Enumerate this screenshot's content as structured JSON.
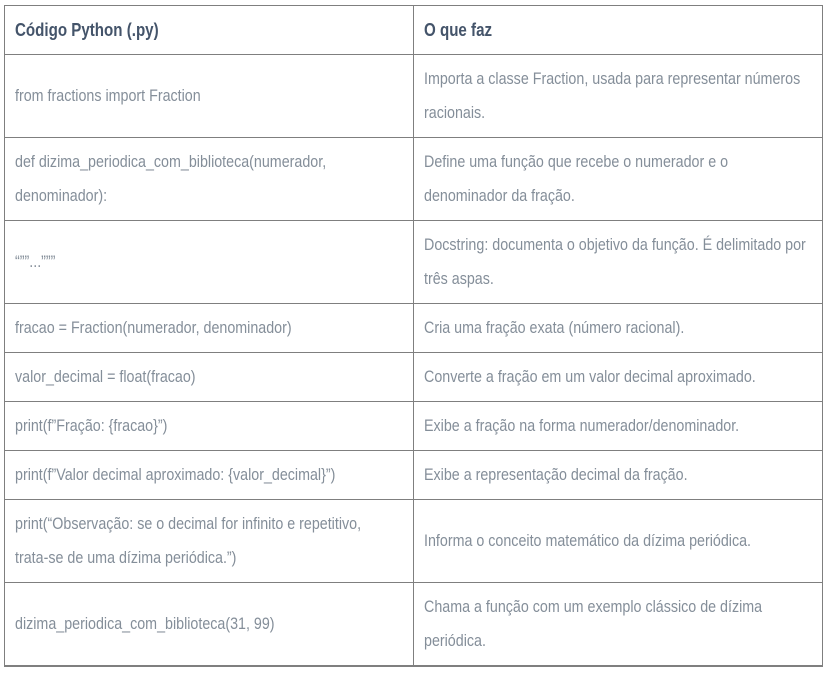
{
  "colors": {
    "page-bg": "#ffffff",
    "border": "#7f7f7f",
    "header-text": "#44546a",
    "body-text": "#848e99"
  },
  "table": {
    "headers": [
      {
        "label": "Código Python (.py)"
      },
      {
        "label": "O que faz"
      }
    ],
    "rows": [
      {
        "code": "from fractions import Fraction",
        "desc": "Importa a classe Fraction, usada para representar números\nracionais."
      },
      {
        "code": "def dizima_periodica_com_biblioteca(numerador,\ndenominador):",
        "desc": "Define uma função que recebe o numerador e o\ndenominador da fração."
      },
      {
        "code": "“””...”””",
        "desc": "Docstring: documenta o objetivo da função. É delimitado por\ntrês aspas."
      },
      {
        "code": "fracao = Fraction(numerador, denominador)",
        "desc": "Cria uma fração exata (número racional)."
      },
      {
        "code": "valor_decimal = float(fracao)",
        "desc": "Converte a fração em um valor decimal aproximado."
      },
      {
        "code": "print(f”Fração: {fracao}”)",
        "desc": "Exibe a fração na forma numerador/denominador."
      },
      {
        "code": "print(f”Valor decimal aproximado: {valor_decimal}”)",
        "desc": "Exibe a representação decimal da fração."
      },
      {
        "code": "print(“Observação: se o decimal for infinito e repetitivo,\ntrata-se de uma dízima periódica.”)",
        "desc": "Informa o conceito matemático da dízima periódica."
      },
      {
        "code": "dizima_periodica_com_biblioteca(31, 99)",
        "desc": "Chama a função com um exemplo clássico de dízima\nperiódica."
      }
    ]
  }
}
